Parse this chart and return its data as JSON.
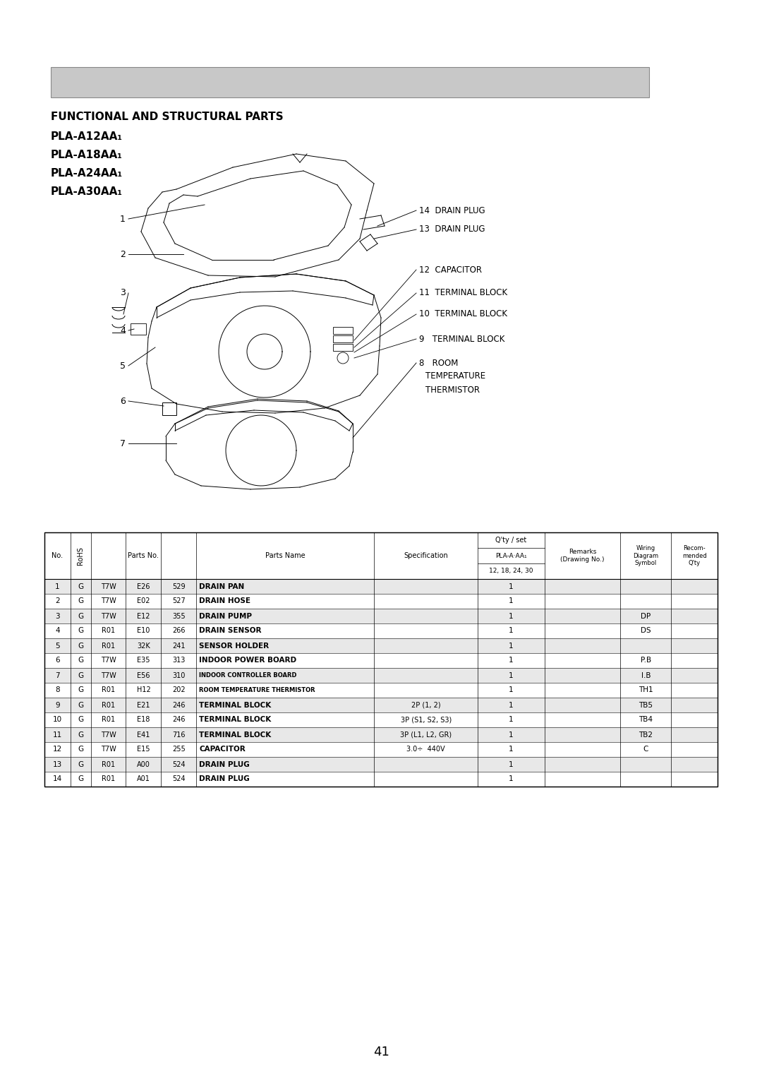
{
  "title_line1": "FUNCTIONAL AND STRUCTURAL PARTS",
  "title_line2": "PLA-A12AA₁",
  "title_line3": "PLA-A18AA₁",
  "title_line4": "PLA-A24AA₁",
  "title_line5": "PLA-A30AA₁",
  "header_bar_color": "#c8c8c8",
  "header_bar_border": "#888888",
  "page_number": "41",
  "table_rows": [
    [
      "1",
      "G",
      "T7W",
      "E26",
      "529",
      "DRAIN PAN",
      "",
      "1",
      "",
      "",
      ""
    ],
    [
      "2",
      "G",
      "T7W",
      "E02",
      "527",
      "DRAIN HOSE",
      "",
      "1",
      "",
      "",
      ""
    ],
    [
      "3",
      "G",
      "T7W",
      "E12",
      "355",
      "DRAIN PUMP",
      "",
      "1",
      "",
      "DP",
      ""
    ],
    [
      "4",
      "G",
      "R01",
      "E10",
      "266",
      "DRAIN SENSOR",
      "",
      "1",
      "",
      "DS",
      ""
    ],
    [
      "5",
      "G",
      "R01",
      "32K",
      "241",
      "SENSOR HOLDER",
      "",
      "1",
      "",
      "",
      ""
    ],
    [
      "6",
      "G",
      "T7W",
      "E35",
      "313",
      "INDOOR POWER BOARD",
      "",
      "1",
      "",
      "P.B",
      ""
    ],
    [
      "7",
      "G",
      "T7W",
      "E56",
      "310",
      "INDOOR CONTROLLER BOARD",
      "",
      "1",
      "",
      "I.B",
      ""
    ],
    [
      "8",
      "G",
      "R01",
      "H12",
      "202",
      "ROOM TEMPERATURE THERMISTOR",
      "",
      "1",
      "",
      "TH1",
      ""
    ],
    [
      "9",
      "G",
      "R01",
      "E21",
      "246",
      "TERMINAL BLOCK",
      "2P (1, 2)",
      "1",
      "",
      "TB5",
      ""
    ],
    [
      "10",
      "G",
      "R01",
      "E18",
      "246",
      "TERMINAL BLOCK",
      "3P (S1, S2, S3)",
      "1",
      "",
      "TB4",
      ""
    ],
    [
      "11",
      "G",
      "T7W",
      "E41",
      "716",
      "TERMINAL BLOCK",
      "3P (L1, L2, GR)",
      "1",
      "",
      "TB2",
      ""
    ],
    [
      "12",
      "G",
      "T7W",
      "E15",
      "255",
      "CAPACITOR",
      "3.0÷  440V",
      "1",
      "",
      "C",
      ""
    ],
    [
      "13",
      "G",
      "R01",
      "A00",
      "524",
      "DRAIN PLUG",
      "",
      "1",
      "",
      "",
      ""
    ],
    [
      "14",
      "G",
      "R01",
      "A01",
      "524",
      "DRAIN PLUG",
      "",
      "1",
      "",
      "",
      ""
    ]
  ],
  "bg_color": "#ffffff",
  "right_labels": [
    [
      14,
      "14  DRAIN PLUG"
    ],
    [
      13,
      "13  DRAIN PLUG"
    ],
    [
      12,
      "12  CAPACITOR"
    ],
    [
      11,
      "11  TERMINAL BLOCK"
    ],
    [
      10,
      "10  TERMINAL BLOCK"
    ],
    [
      9,
      "9   TERMINAL BLOCK"
    ],
    [
      8,
      "8   ROOM"
    ]
  ]
}
